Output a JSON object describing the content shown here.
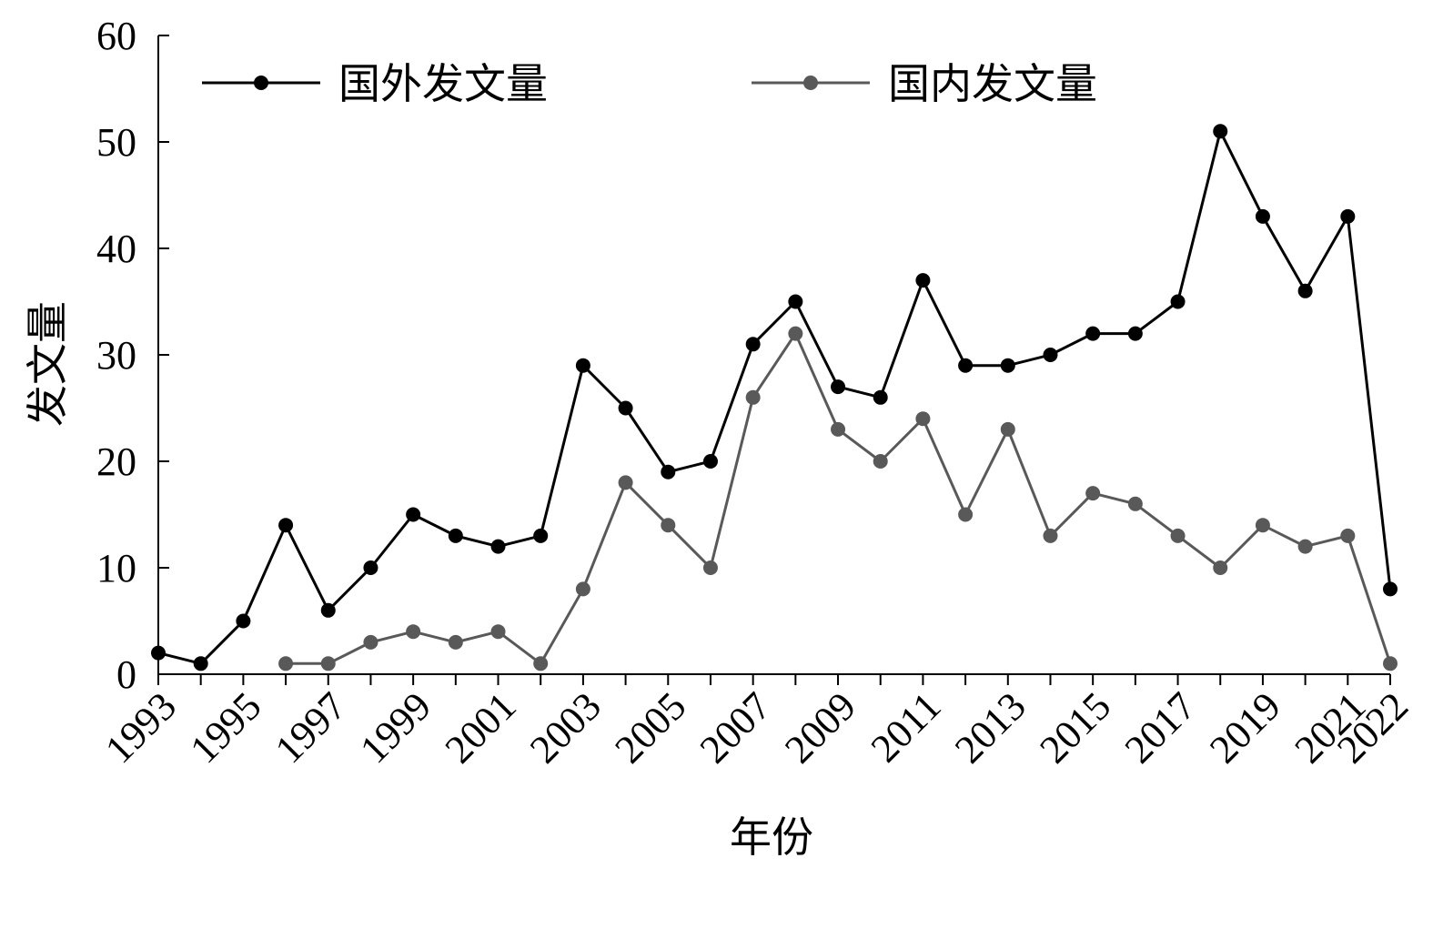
{
  "chart_data": {
    "type": "line",
    "xlabel": "年份",
    "ylabel": "发文量",
    "ylim": [
      0,
      60
    ],
    "yticks": [
      0,
      10,
      20,
      30,
      40,
      50,
      60
    ],
    "x": [
      1993,
      1994,
      1995,
      1996,
      1997,
      1998,
      1999,
      2000,
      2001,
      2002,
      2003,
      2004,
      2005,
      2006,
      2007,
      2008,
      2009,
      2010,
      2011,
      2012,
      2013,
      2014,
      2015,
      2016,
      2017,
      2018,
      2019,
      2020,
      2021,
      2022
    ],
    "xtick_labels": [
      "1993",
      "1995",
      "1997",
      "1999",
      "2001",
      "2003",
      "2005",
      "2007",
      "2009",
      "2011",
      "2013",
      "2015",
      "2017",
      "2019",
      "2021",
      "2022"
    ],
    "grid": false,
    "legend_position": "top",
    "series": [
      {
        "name": "国外发文量",
        "color": "#000000",
        "values": [
          2,
          1,
          5,
          14,
          6,
          10,
          15,
          13,
          12,
          13,
          29,
          25,
          19,
          20,
          31,
          35,
          27,
          26,
          37,
          29,
          29,
          30,
          32,
          32,
          35,
          51,
          43,
          36,
          43,
          8
        ]
      },
      {
        "name": "国内发文量",
        "color": "#595959",
        "values": [
          null,
          null,
          null,
          1,
          1,
          3,
          4,
          3,
          4,
          1,
          8,
          18,
          14,
          10,
          26,
          32,
          23,
          20,
          24,
          15,
          23,
          13,
          17,
          16,
          13,
          10,
          14,
          12,
          13,
          1
        ]
      }
    ]
  }
}
